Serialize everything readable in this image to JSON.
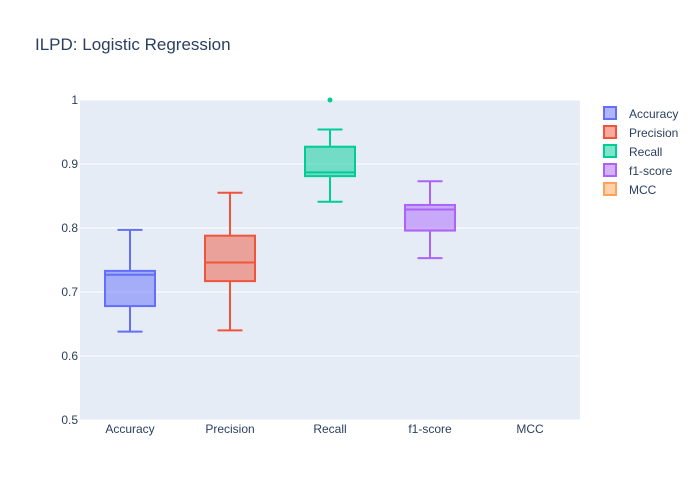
{
  "chart_data": {
    "type": "box",
    "title": "ILPD: Logistic Regression",
    "xlabel": "",
    "ylabel": "",
    "ylim": [
      0.5,
      1.0
    ],
    "y_ticks": [
      "0.5",
      "0.6",
      "0.7",
      "0.8",
      "0.9",
      "1"
    ],
    "y_tick_values": [
      0.5,
      0.6,
      0.7,
      0.8,
      0.9,
      1.0
    ],
    "categories": [
      "Accuracy",
      "Precision",
      "Recall",
      "f1-score",
      "MCC"
    ],
    "legend_position": "top-right",
    "grid": true,
    "plot_background": "#E5ECF6",
    "series": [
      {
        "name": "Accuracy",
        "color": "#636EFA",
        "whisker_low": 0.638,
        "q1": 0.678,
        "median": 0.727,
        "q3": 0.733,
        "whisker_high": 0.797,
        "outliers": []
      },
      {
        "name": "Precision",
        "color": "#EF553B",
        "whisker_low": 0.64,
        "q1": 0.717,
        "median": 0.746,
        "q3": 0.788,
        "whisker_high": 0.855,
        "outliers": []
      },
      {
        "name": "Recall",
        "color": "#00CC96",
        "whisker_low": 0.841,
        "q1": 0.881,
        "median": 0.887,
        "q3": 0.927,
        "whisker_high": 0.954,
        "outliers": [
          1.0
        ]
      },
      {
        "name": "f1-score",
        "color": "#AB63FA",
        "whisker_low": 0.753,
        "q1": 0.796,
        "median": 0.829,
        "q3": 0.836,
        "whisker_high": 0.873,
        "outliers": []
      },
      {
        "name": "MCC",
        "color": "#FFA15A",
        "whisker_low": null,
        "q1": null,
        "median": null,
        "q3": null,
        "whisker_high": null,
        "outliers": []
      }
    ]
  }
}
